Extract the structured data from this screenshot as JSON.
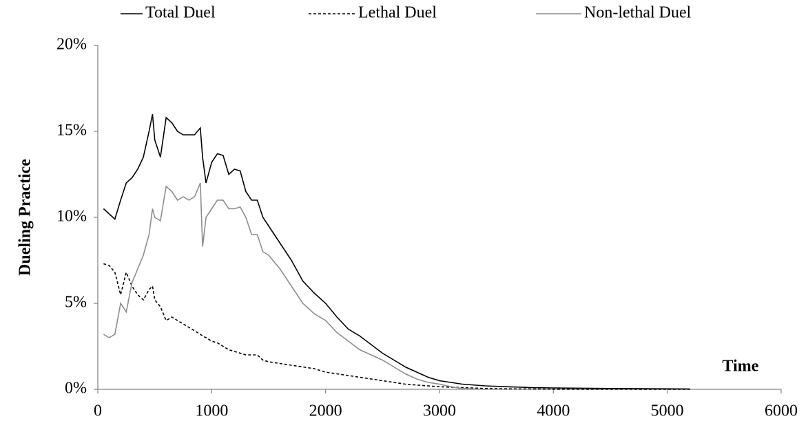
{
  "chart_data": {
    "type": "line",
    "x_label": "Time",
    "y_label": "Dueling Practice",
    "x": [
      50,
      100,
      150,
      200,
      250,
      300,
      350,
      400,
      450,
      480,
      500,
      550,
      600,
      650,
      700,
      750,
      800,
      850,
      900,
      920,
      950,
      1000,
      1050,
      1100,
      1150,
      1200,
      1250,
      1300,
      1350,
      1400,
      1450,
      1500,
      1600,
      1700,
      1800,
      1900,
      2000,
      2100,
      2200,
      2300,
      2400,
      2500,
      2600,
      2700,
      2800,
      2900,
      3000,
      3100,
      3200,
      3400,
      3600,
      3800,
      4000,
      4500,
      5000,
      5200
    ],
    "series": [
      {
        "name": "Total Duel",
        "color": "#000000",
        "dash": "none",
        "values": [
          10.5,
          10.2,
          9.9,
          11,
          12,
          12.3,
          12.8,
          13.5,
          15,
          16,
          14.5,
          13.5,
          15.8,
          15.5,
          15,
          14.8,
          14.8,
          14.8,
          15.2,
          13.5,
          12,
          13.2,
          13.7,
          13.6,
          12.5,
          12.8,
          12.7,
          11.5,
          11,
          11,
          10,
          9.5,
          8.5,
          7.5,
          6.3,
          5.6,
          5,
          4.2,
          3.5,
          3.1,
          2.6,
          2.1,
          1.7,
          1.3,
          1,
          0.7,
          0.5,
          0.4,
          0.3,
          0.2,
          0.15,
          0.1,
          0.08,
          0.05,
          0.03,
          0.02
        ]
      },
      {
        "name": "Lethal Duel",
        "color": "#000000",
        "dash": "4 3",
        "values": [
          7.3,
          7.2,
          6.8,
          5.5,
          6.8,
          6,
          5.5,
          5.2,
          5.8,
          6,
          5.2,
          4.8,
          4,
          4.2,
          4,
          3.8,
          3.6,
          3.4,
          3.2,
          3.1,
          3,
          2.8,
          2.7,
          2.5,
          2.3,
          2.2,
          2.1,
          2,
          2,
          2,
          1.7,
          1.6,
          1.5,
          1.4,
          1.3,
          1.2,
          1,
          0.9,
          0.8,
          0.7,
          0.6,
          0.5,
          0.4,
          0.3,
          0.25,
          0.2,
          0.15,
          0.12,
          0.1,
          0.05,
          0.03,
          0.02,
          0.01,
          0.01,
          0,
          0
        ]
      },
      {
        "name": "Non-lethal Duel",
        "color": "#8c8c8c",
        "dash": "none",
        "values": [
          3.2,
          3,
          3.2,
          5,
          4.5,
          6.2,
          7,
          7.8,
          9,
          10.5,
          10,
          9.8,
          11.8,
          11.5,
          11,
          11.2,
          11,
          11.2,
          12,
          8.3,
          10,
          10.5,
          11,
          11,
          10.5,
          10.5,
          10.6,
          10,
          9,
          9,
          8,
          7.8,
          7,
          6,
          5,
          4.4,
          4,
          3.3,
          2.8,
          2.3,
          2,
          1.7,
          1.3,
          0.9,
          0.6,
          0.4,
          0.3,
          0.15,
          0.05,
          0,
          null,
          null,
          null,
          null,
          null,
          null
        ]
      }
    ],
    "xlim": [
      0,
      6000
    ],
    "xticks": [
      0,
      1000,
      2000,
      3000,
      4000,
      5000,
      6000
    ],
    "ylim": [
      0,
      20
    ],
    "yticks": [
      {
        "value": 0,
        "label": "0%"
      },
      {
        "value": 5,
        "label": "5%"
      },
      {
        "value": 10,
        "label": "10%"
      },
      {
        "value": 15,
        "label": "15%"
      },
      {
        "value": 20,
        "label": "20%"
      }
    ],
    "grid": false
  }
}
